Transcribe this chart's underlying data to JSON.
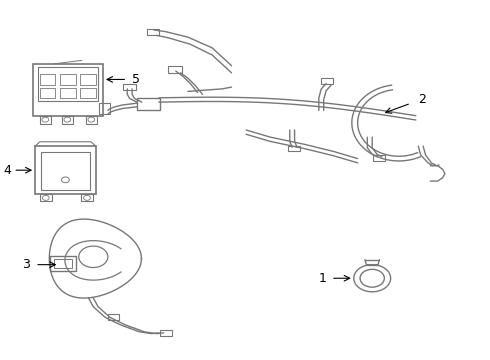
{
  "background_color": "#ffffff",
  "line_color": "#777777",
  "figsize": [
    4.9,
    3.6
  ],
  "dpi": 100
}
